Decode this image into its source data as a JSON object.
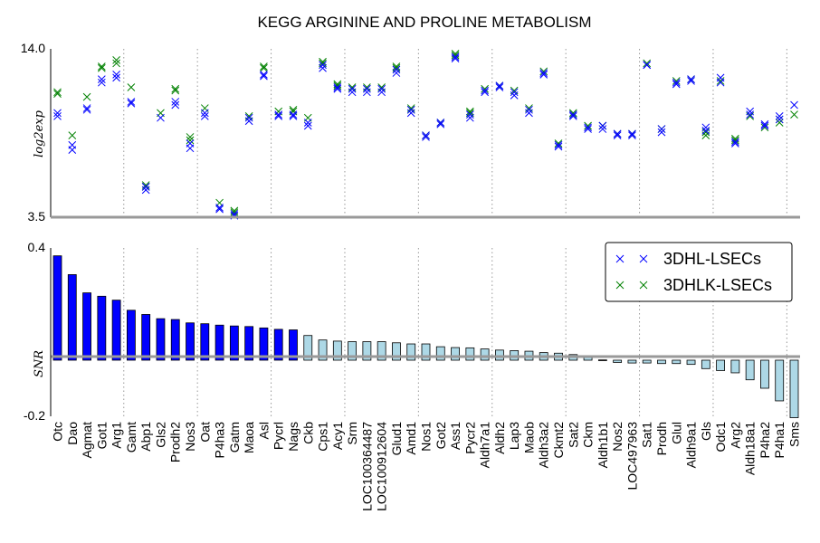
{
  "chart_data": [
    {
      "type": "scatter",
      "title": "KEGG ARGININE AND PROLINE METABOLISM",
      "ylabel": "log2exp",
      "ylim": [
        3.5,
        14.0
      ],
      "ytick_labels": [
        "3.5",
        "14.0"
      ],
      "categories": [
        "Otc",
        "Dao",
        "Agmat",
        "Got1",
        "Arg1",
        "Gamt",
        "Abp1",
        "Gls2",
        "Prodh2",
        "Nos3",
        "Oat",
        "P4ha3",
        "Gatm",
        "Maoa",
        "Asl",
        "Pycrl",
        "Nags",
        "Ckb",
        "Cps1",
        "Acy1",
        "Srm",
        "LOC100364487",
        "LOC100912604",
        "Glud1",
        "Amd1",
        "Nos1",
        "Got2",
        "Ass1",
        "Pycr2",
        "Aldh7a1",
        "Aldh2",
        "Lap3",
        "Maob",
        "Aldh3a2",
        "Ckmt2",
        "Sat2",
        "Ckm",
        "Aldh1b1",
        "Nos2",
        "LOC497963",
        "Sat1",
        "Prodh",
        "Glul",
        "Aldh9a1",
        "Gls",
        "Odc1",
        "Arg2",
        "Aldh18a1",
        "P4ha2",
        "P4ha1",
        "Sms"
      ],
      "series": [
        {
          "name": "3DHL-LSECs",
          "color": "#0000ff",
          "points": [
            [
              9.8,
              10.0
            ],
            [
              8.0,
              7.7
            ],
            [
              10.2,
              10.3
            ],
            [
              11.9,
              12.1
            ],
            [
              12.2,
              12.4
            ],
            [
              10.6,
              10.7
            ],
            [
              5.2,
              5.4
            ],
            [
              9.7,
              null
            ],
            [
              10.5,
              10.7
            ],
            [
              7.8,
              8.1
            ],
            [
              9.8,
              10.0
            ],
            [
              4.0,
              4.1
            ],
            [
              3.6,
              3.7
            ],
            [
              9.5,
              9.7
            ],
            [
              12.3,
              12.4
            ],
            [
              9.8,
              9.9
            ],
            [
              9.8,
              9.9
            ],
            [
              9.2,
              9.4
            ],
            [
              12.8,
              13.0
            ],
            [
              11.5,
              11.6
            ],
            [
              11.3,
              11.5
            ],
            [
              11.3,
              11.5
            ],
            [
              11.3,
              11.5
            ],
            [
              12.5,
              12.7
            ],
            [
              10.0,
              10.2
            ],
            [
              8.5,
              8.6
            ],
            [
              9.3,
              9.4
            ],
            [
              13.4,
              13.5
            ],
            [
              9.7,
              9.9
            ],
            [
              11.3,
              11.4
            ],
            [
              11.6,
              11.7
            ],
            [
              11.1,
              11.3
            ],
            [
              10.0,
              10.2
            ],
            [
              12.4,
              12.5
            ],
            [
              7.9,
              8.0
            ],
            [
              9.8,
              9.9
            ],
            [
              9.0,
              9.1
            ],
            [
              9.0,
              9.2
            ],
            [
              8.6,
              8.7
            ],
            [
              8.6,
              8.7
            ],
            [
              13.0,
              13.0
            ],
            [
              8.8,
              9.0
            ],
            [
              11.8,
              11.9
            ],
            [
              12.0,
              12.1
            ],
            [
              8.9,
              9.1
            ],
            [
              11.9,
              12.2
            ],
            [
              8.1,
              8.2
            ],
            [
              9.9,
              10.1
            ],
            [
              9.2,
              9.3
            ],
            [
              9.6,
              9.8
            ],
            [
              10.5,
              null
            ]
          ]
        },
        {
          "name": "3DHLK-LSECs",
          "color": "#008000",
          "points": [
            [
              11.2,
              11.3
            ],
            [
              8.6,
              null
            ],
            [
              11.0,
              null
            ],
            [
              12.8,
              12.9
            ],
            [
              13.1,
              13.3
            ],
            [
              11.6,
              null
            ],
            [
              5.4,
              5.5
            ],
            [
              10.0,
              null
            ],
            [
              11.4,
              11.5
            ],
            [
              8.3,
              8.5
            ],
            [
              10.3,
              null
            ],
            [
              4.4,
              null
            ],
            [
              3.8,
              3.9
            ],
            [
              9.8,
              null
            ],
            [
              12.8,
              12.9
            ],
            [
              10.1,
              null
            ],
            [
              10.1,
              10.2
            ],
            [
              9.7,
              null
            ],
            [
              13.1,
              13.2
            ],
            [
              11.7,
              11.8
            ],
            [
              11.6,
              null
            ],
            [
              11.6,
              null
            ],
            [
              11.6,
              null
            ],
            [
              12.8,
              12.9
            ],
            [
              10.2,
              10.3
            ],
            [
              8.6,
              null
            ],
            [
              9.4,
              null
            ],
            [
              13.6,
              13.7
            ],
            [
              10.0,
              10.1
            ],
            [
              11.5,
              null
            ],
            [
              11.7,
              null
            ],
            [
              11.4,
              null
            ],
            [
              10.3,
              null
            ],
            [
              12.6,
              null
            ],
            [
              8.1,
              null
            ],
            [
              9.9,
              10.0
            ],
            [
              9.2,
              null
            ],
            [
              9.2,
              null
            ],
            [
              8.7,
              null
            ],
            [
              8.7,
              null
            ],
            [
              13.1,
              null
            ],
            [
              9.0,
              null
            ],
            [
              12.0,
              null
            ],
            [
              12.1,
              null
            ],
            [
              8.6,
              8.8
            ],
            [
              12.0,
              null
            ],
            [
              8.3,
              8.4
            ],
            [
              9.8,
              null
            ],
            [
              9.1,
              null
            ],
            [
              9.4,
              9.6
            ],
            [
              9.9,
              null
            ]
          ]
        }
      ]
    },
    {
      "type": "bar",
      "ylabel": "SNR",
      "ylim": [
        -0.2,
        0.4
      ],
      "ytick_labels": [
        "-0.2",
        "0.4"
      ],
      "categories": [
        "Otc",
        "Dao",
        "Agmat",
        "Got1",
        "Arg1",
        "Gamt",
        "Abp1",
        "Gls2",
        "Prodh2",
        "Nos3",
        "Oat",
        "P4ha3",
        "Gatm",
        "Maoa",
        "Asl",
        "Pycrl",
        "Nags",
        "Ckb",
        "Cps1",
        "Acy1",
        "Srm",
        "LOC100364487",
        "LOC100912604",
        "Glud1",
        "Amd1",
        "Nos1",
        "Got2",
        "Ass1",
        "Pycr2",
        "Aldh7a1",
        "Aldh2",
        "Lap3",
        "Maob",
        "Aldh3a2",
        "Ckmt2",
        "Sat2",
        "Ckm",
        "Aldh1b1",
        "Nos2",
        "LOC497963",
        "Sat1",
        "Prodh",
        "Glul",
        "Aldh9a1",
        "Gls",
        "Odc1",
        "Arg2",
        "Aldh18a1",
        "P4ha2",
        "P4ha1",
        "Sms"
      ],
      "values": [
        0.372,
        0.305,
        0.24,
        0.228,
        0.214,
        0.178,
        0.163,
        0.148,
        0.145,
        0.133,
        0.13,
        0.125,
        0.122,
        0.12,
        0.115,
        0.11,
        0.108,
        0.088,
        0.072,
        0.068,
        0.066,
        0.066,
        0.066,
        0.062,
        0.058,
        0.058,
        0.048,
        0.045,
        0.044,
        0.04,
        0.036,
        0.034,
        0.032,
        0.027,
        0.025,
        0.02,
        0.01,
        0.001,
        -0.008,
        -0.01,
        -0.01,
        -0.012,
        -0.012,
        -0.015,
        -0.03,
        -0.037,
        -0.045,
        -0.07,
        -0.1,
        -0.145,
        -0.205
      ],
      "highlight_count": 17,
      "highlight_color": "#0000ff",
      "base_color": "#add8e6"
    }
  ],
  "legend": {
    "placement": "top-right",
    "entries": [
      "3DHL-LSECs",
      "3DHLK-LSECs"
    ]
  }
}
